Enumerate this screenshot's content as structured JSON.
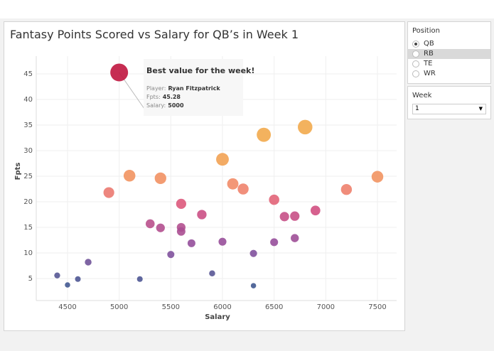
{
  "title": "Fantasy Points Scored vs Salary for QB’s in Week 1",
  "position_filter": {
    "label": "Position",
    "options": [
      {
        "label": "QB",
        "selected": true
      },
      {
        "label": "RB",
        "selected": false
      },
      {
        "label": "TE",
        "selected": false
      },
      {
        "label": "WR",
        "selected": false
      }
    ]
  },
  "week_filter": {
    "label": "Week",
    "value": "1"
  },
  "annotation": {
    "headline": "Best value for the week!",
    "player_label": "Player:",
    "player": "Ryan Fitzpatrick",
    "fpts_label": "Fpts:",
    "fpts": "45.28",
    "salary_label": "Salary:",
    "salary": "5000"
  },
  "chart_data": {
    "type": "scatter",
    "xlabel": "Salary",
    "ylabel": "Fpts",
    "xlim": [
      4250,
      7700
    ],
    "ylim": [
      2,
      47
    ],
    "xticks": [
      4500,
      5000,
      5500,
      6000,
      6500,
      7000,
      7500
    ],
    "yticks": [
      5,
      10,
      15,
      20,
      25,
      30,
      35,
      40,
      45
    ],
    "grid": true,
    "size_and_color_by": "Fpts",
    "colors": {
      "low": "#3b5a8f",
      "mid_low": "#8c4f9f",
      "mid": "#d9507f",
      "mid_high": "#f28a6a",
      "high": "#f2aa4c",
      "top": "#c0163f"
    },
    "points": [
      [
        5000,
        45.28
      ],
      [
        6800,
        34.6
      ],
      [
        6400,
        33.1
      ],
      [
        6000,
        28.3
      ],
      [
        5100,
        25.1
      ],
      [
        5400,
        24.6
      ],
      [
        4900,
        21.8
      ],
      [
        6100,
        23.5
      ],
      [
        6200,
        22.5
      ],
      [
        7500,
        24.9
      ],
      [
        7200,
        22.4
      ],
      [
        5600,
        19.6
      ],
      [
        6500,
        20.4
      ],
      [
        5800,
        17.5
      ],
      [
        5300,
        15.7
      ],
      [
        5400,
        14.9
      ],
      [
        5600,
        15.0
      ],
      [
        5600,
        14.2
      ],
      [
        6600,
        17.1
      ],
      [
        6700,
        17.2
      ],
      [
        6900,
        18.3
      ],
      [
        5700,
        11.9
      ],
      [
        6000,
        12.2
      ],
      [
        6500,
        12.1
      ],
      [
        6700,
        12.9
      ],
      [
        5500,
        9.7
      ],
      [
        6300,
        9.9
      ],
      [
        4700,
        8.2
      ],
      [
        4400,
        5.6
      ],
      [
        4600,
        4.9
      ],
      [
        5200,
        4.9
      ],
      [
        5900,
        6.0
      ],
      [
        4500,
        3.75
      ],
      [
        6300,
        3.6
      ]
    ]
  }
}
